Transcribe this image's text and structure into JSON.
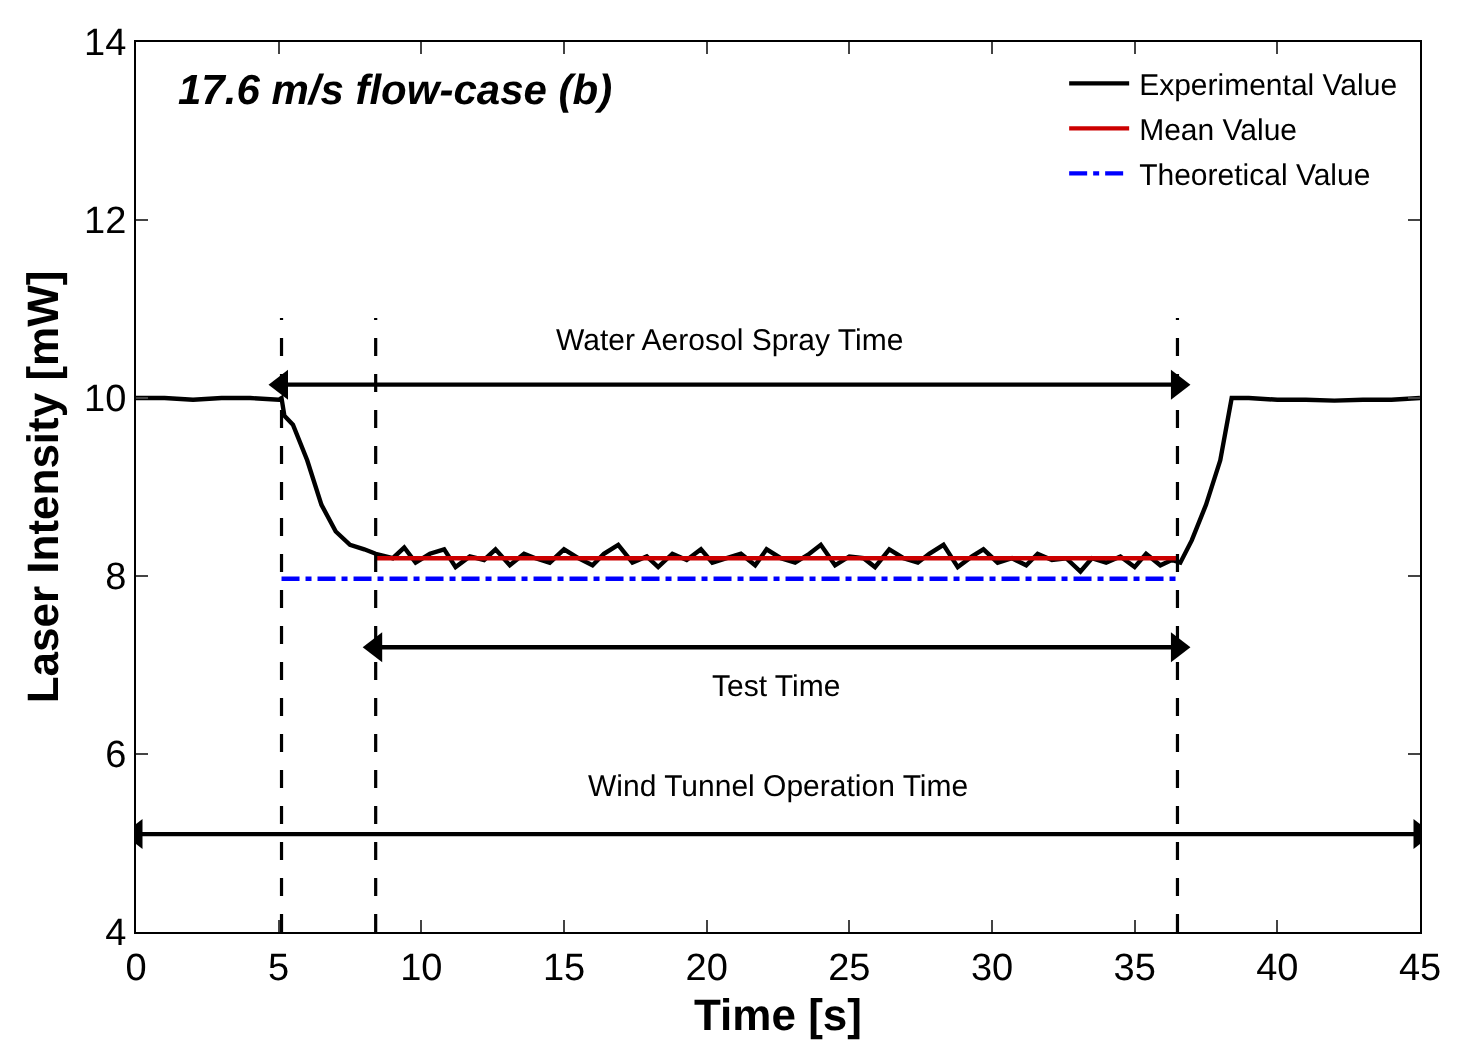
{
  "chart_data": {
    "type": "line",
    "title": "17.6 m/s flow-case (b)",
    "xlabel": "Time [s]",
    "ylabel": "Laser Intensity [mW]",
    "xlim": [
      0,
      45
    ],
    "ylim": [
      4,
      14
    ],
    "xticks": [
      0,
      5,
      10,
      15,
      20,
      25,
      30,
      35,
      40,
      45
    ],
    "yticks": [
      4,
      6,
      8,
      10,
      12,
      14
    ],
    "legend": "top right",
    "line_style": "solid",
    "marker": "none",
    "series": [
      {
        "name": "Experimental Value",
        "color": "#000000",
        "x": [
          0,
          1,
          2,
          3,
          4,
          5,
          5.1,
          5.2,
          5.5,
          6,
          6.5,
          7,
          7.5,
          8,
          8.4,
          9,
          9.4,
          9.8,
          10.3,
          10.8,
          11.2,
          11.7,
          12.2,
          12.6,
          13.1,
          13.6,
          14,
          14.5,
          15,
          15.5,
          16,
          16.4,
          16.9,
          17.4,
          17.9,
          18.3,
          18.8,
          19.3,
          19.8,
          20.2,
          20.7,
          21.2,
          21.7,
          22.1,
          22.6,
          23.1,
          23.6,
          24,
          24.5,
          25,
          25.5,
          25.9,
          26.4,
          26.9,
          27.4,
          27.8,
          28.3,
          28.8,
          29.3,
          29.7,
          30.2,
          30.7,
          31.2,
          31.6,
          32.1,
          32.6,
          33.1,
          33.5,
          34,
          34.5,
          35,
          35.4,
          35.9,
          36.3,
          36.6,
          37,
          37.5,
          38,
          38.4,
          39,
          40,
          41,
          42,
          43,
          44,
          45
        ],
        "values": [
          10.0,
          10.0,
          9.98,
          10.0,
          10.0,
          9.98,
          10.0,
          9.8,
          9.7,
          9.3,
          8.8,
          8.5,
          8.35,
          8.3,
          8.25,
          8.2,
          8.32,
          8.15,
          8.25,
          8.3,
          8.1,
          8.22,
          8.18,
          8.3,
          8.12,
          8.25,
          8.2,
          8.15,
          8.3,
          8.2,
          8.12,
          8.25,
          8.35,
          8.15,
          8.22,
          8.1,
          8.25,
          8.18,
          8.3,
          8.15,
          8.2,
          8.25,
          8.12,
          8.3,
          8.2,
          8.15,
          8.25,
          8.35,
          8.12,
          8.22,
          8.2,
          8.1,
          8.3,
          8.2,
          8.15,
          8.25,
          8.35,
          8.1,
          8.22,
          8.3,
          8.15,
          8.2,
          8.12,
          8.25,
          8.18,
          8.2,
          8.05,
          8.2,
          8.15,
          8.22,
          8.1,
          8.25,
          8.12,
          8.18,
          8.15,
          8.4,
          8.8,
          9.3,
          10.0,
          10.0,
          9.98,
          9.98,
          9.97,
          9.98,
          9.98,
          10.0
        ]
      },
      {
        "name": "Mean Value",
        "color": "#cc0000",
        "x": [
          8.4,
          36.5
        ],
        "values": [
          8.2,
          8.2
        ]
      },
      {
        "name": "Theoretical Value",
        "color": "#0000ff",
        "x": [
          5.1,
          36.5
        ],
        "values": [
          7.97,
          7.97
        ],
        "line_style": "dashdot"
      },
      {
        "color": "#000000",
        "x": [
          5.1,
          36.5
        ],
        "values": [
          10.15,
          10.15
        ],
        "marker": "triangle"
      },
      {
        "color": "#000000",
        "x": [
          8.4,
          36.5
        ],
        "values": [
          7.2,
          7.2
        ],
        "marker": "triangle"
      },
      {
        "color": "#000000",
        "x": [
          0,
          45
        ],
        "values": [
          5.1,
          5.1
        ],
        "marker": "triangle"
      }
    ],
    "ref_lines": [
      {
        "axis": "x",
        "value": 5.1,
        "color": "#000000",
        "line_style": "dashed"
      },
      {
        "axis": "x",
        "value": 8.4,
        "color": "#000000",
        "line_style": "dashed"
      },
      {
        "axis": "x",
        "value": 36.5,
        "color": "#000000",
        "line_style": "dashed"
      }
    ],
    "annotations": [
      "Water Aerosol Spray Time",
      "Test Time",
      "Wind Tunnel Operation Time"
    ]
  }
}
